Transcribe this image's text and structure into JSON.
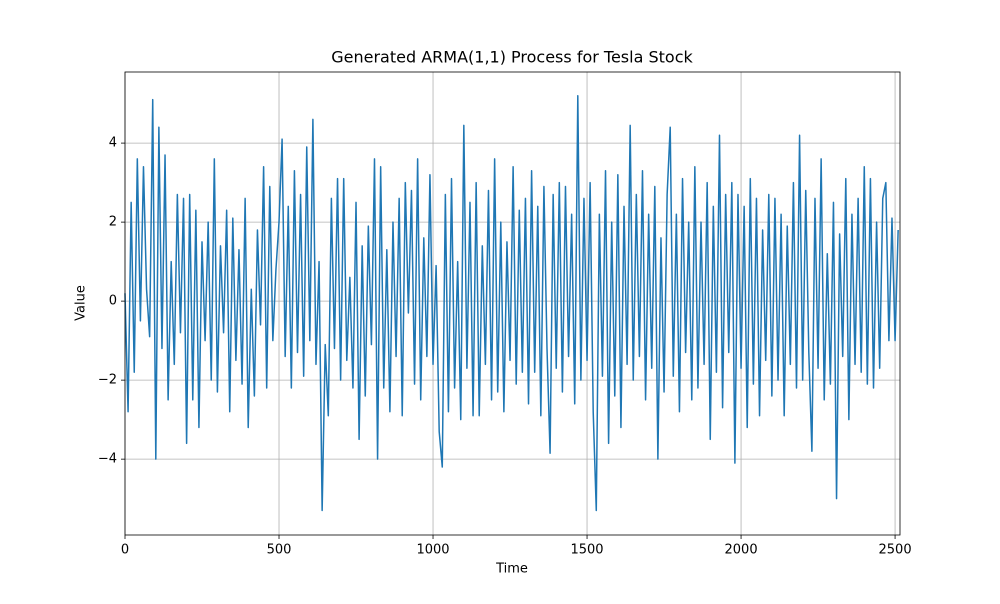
{
  "chart_data": {
    "type": "line",
    "title": "Generated ARMA(1,1) Process for Tesla Stock",
    "x_label": "Time",
    "y_label": "Value",
    "grid": true,
    "xlim": [
      0,
      2516
    ],
    "ylim": [
      -5.92,
      5.8
    ],
    "xticks": [
      0,
      500,
      1000,
      1500,
      2000,
      2500
    ],
    "yticks": [
      {
        "value": -4,
        "label": "−4"
      },
      {
        "value": -2,
        "label": "−2"
      },
      0,
      2,
      4
    ],
    "x": [
      0,
      10,
      20,
      30,
      40,
      50,
      60,
      70,
      80,
      90,
      100,
      110,
      120,
      130,
      140,
      150,
      160,
      170,
      180,
      190,
      200,
      210,
      220,
      230,
      240,
      250,
      260,
      270,
      280,
      290,
      300,
      310,
      320,
      330,
      340,
      350,
      360,
      370,
      380,
      390,
      400,
      410,
      420,
      430,
      440,
      450,
      460,
      470,
      480,
      490,
      500,
      510,
      520,
      530,
      540,
      550,
      560,
      570,
      580,
      590,
      600,
      610,
      620,
      630,
      640,
      650,
      660,
      670,
      680,
      690,
      700,
      710,
      720,
      730,
      740,
      750,
      760,
      770,
      780,
      790,
      800,
      810,
      820,
      830,
      840,
      850,
      860,
      870,
      880,
      890,
      900,
      910,
      920,
      930,
      940,
      950,
      960,
      970,
      980,
      990,
      1000,
      1010,
      1020,
      1030,
      1040,
      1050,
      1060,
      1070,
      1080,
      1090,
      1100,
      1110,
      1120,
      1130,
      1140,
      1150,
      1160,
      1170,
      1180,
      1190,
      1200,
      1210,
      1220,
      1230,
      1240,
      1250,
      1260,
      1270,
      1280,
      1290,
      1300,
      1310,
      1320,
      1330,
      1340,
      1350,
      1360,
      1370,
      1380,
      1390,
      1400,
      1410,
      1420,
      1430,
      1440,
      1450,
      1460,
      1470,
      1480,
      1490,
      1500,
      1510,
      1520,
      1530,
      1540,
      1550,
      1560,
      1570,
      1580,
      1590,
      1600,
      1610,
      1620,
      1630,
      1640,
      1650,
      1660,
      1670,
      1680,
      1690,
      1700,
      1710,
      1720,
      1730,
      1740,
      1750,
      1760,
      1770,
      1780,
      1790,
      1800,
      1810,
      1820,
      1830,
      1840,
      1850,
      1860,
      1870,
      1880,
      1890,
      1900,
      1910,
      1920,
      1930,
      1940,
      1950,
      1960,
      1970,
      1980,
      1990,
      2000,
      2010,
      2020,
      2030,
      2040,
      2050,
      2060,
      2070,
      2080,
      2090,
      2100,
      2110,
      2120,
      2130,
      2140,
      2150,
      2160,
      2170,
      2180,
      2190,
      2200,
      2210,
      2220,
      2230,
      2240,
      2250,
      2260,
      2270,
      2280,
      2290,
      2300,
      2310,
      2320,
      2330,
      2340,
      2350,
      2360,
      2370,
      2380,
      2390,
      2400,
      2410,
      2420,
      2430,
      2440,
      2450,
      2460,
      2470,
      2480,
      2490,
      2500,
      2510
    ],
    "series": [
      {
        "name": "ARMA(1,1)",
        "color": "#1f77b4",
        "values": [
          0.2,
          -2.8,
          2.5,
          -1.8,
          3.6,
          -0.5,
          3.4,
          0.3,
          -0.9,
          5.1,
          -4.0,
          4.4,
          -1.2,
          3.7,
          -2.5,
          1.0,
          -1.6,
          2.7,
          -0.8,
          2.6,
          -3.6,
          2.7,
          -2.5,
          2.3,
          -3.2,
          1.5,
          -1.0,
          2.0,
          -2.0,
          3.6,
          -2.3,
          1.4,
          -0.8,
          2.3,
          -2.8,
          2.1,
          -1.5,
          1.3,
          -2.1,
          2.6,
          -3.2,
          0.3,
          -2.4,
          1.8,
          -0.6,
          3.4,
          -2.2,
          2.9,
          -1.0,
          0.8,
          2.0,
          4.1,
          -1.4,
          2.4,
          -2.2,
          3.3,
          -1.3,
          2.7,
          -1.9,
          3.9,
          -1.0,
          4.6,
          -1.6,
          1.0,
          -5.3,
          -1.1,
          -2.9,
          2.6,
          -1.2,
          3.1,
          -2.0,
          3.1,
          -1.5,
          0.6,
          -2.2,
          2.5,
          -3.5,
          1.4,
          -2.4,
          1.9,
          -1.1,
          3.6,
          -4.0,
          3.4,
          -2.2,
          1.3,
          -2.8,
          2.0,
          -1.4,
          2.6,
          -2.9,
          3.0,
          -0.3,
          2.8,
          -2.1,
          3.6,
          -2.5,
          1.6,
          -1.4,
          3.2,
          -1.6,
          0.9,
          -3.3,
          -4.2,
          2.7,
          -2.8,
          3.1,
          -2.2,
          1.0,
          -3.0,
          4.45,
          -1.7,
          2.5,
          -2.9,
          3.0,
          -2.9,
          1.4,
          -1.6,
          2.8,
          -2.5,
          3.6,
          -2.3,
          2.0,
          -2.8,
          1.5,
          -1.5,
          3.4,
          -2.1,
          2.3,
          -1.8,
          2.6,
          -2.6,
          3.3,
          -1.8,
          2.4,
          -2.9,
          2.9,
          -1.2,
          -3.85,
          2.7,
          -1.7,
          3.0,
          -2.3,
          2.9,
          -1.4,
          2.2,
          -2.6,
          5.2,
          -2.0,
          2.6,
          -1.5,
          3.0,
          -2.8,
          -5.3,
          2.2,
          -1.9,
          3.3,
          -3.6,
          2.0,
          -2.4,
          3.2,
          -3.2,
          2.4,
          -1.6,
          4.45,
          -2.0,
          2.7,
          -1.4,
          3.3,
          -2.5,
          2.2,
          -1.7,
          2.9,
          -4.0,
          1.6,
          -2.3,
          2.7,
          4.4,
          -1.9,
          2.2,
          -2.8,
          3.1,
          -1.3,
          2.0,
          -2.5,
          3.4,
          -2.2,
          2.0,
          -1.6,
          3.0,
          -3.5,
          2.4,
          -1.8,
          4.2,
          -2.7,
          2.7,
          -1.3,
          3.0,
          -4.1,
          2.7,
          -1.7,
          2.4,
          -3.2,
          3.1,
          -2.1,
          2.6,
          -2.9,
          1.8,
          -1.5,
          2.7,
          -2.4,
          2.6,
          -2.0,
          2.2,
          -2.9,
          1.9,
          -1.6,
          3.0,
          -2.2,
          4.2,
          -2.0,
          2.8,
          -1.3,
          -3.8,
          2.6,
          -1.7,
          3.6,
          -2.5,
          1.2,
          -2.1,
          2.5,
          -5.0,
          1.7,
          -1.4,
          3.1,
          -3.0,
          2.2,
          -1.6,
          2.6,
          -1.8,
          3.4,
          -2.1,
          3.1,
          -2.2,
          2.0,
          -1.7,
          2.6,
          3.0,
          -1.0,
          2.1,
          -1.0,
          1.8
        ]
      }
    ]
  }
}
